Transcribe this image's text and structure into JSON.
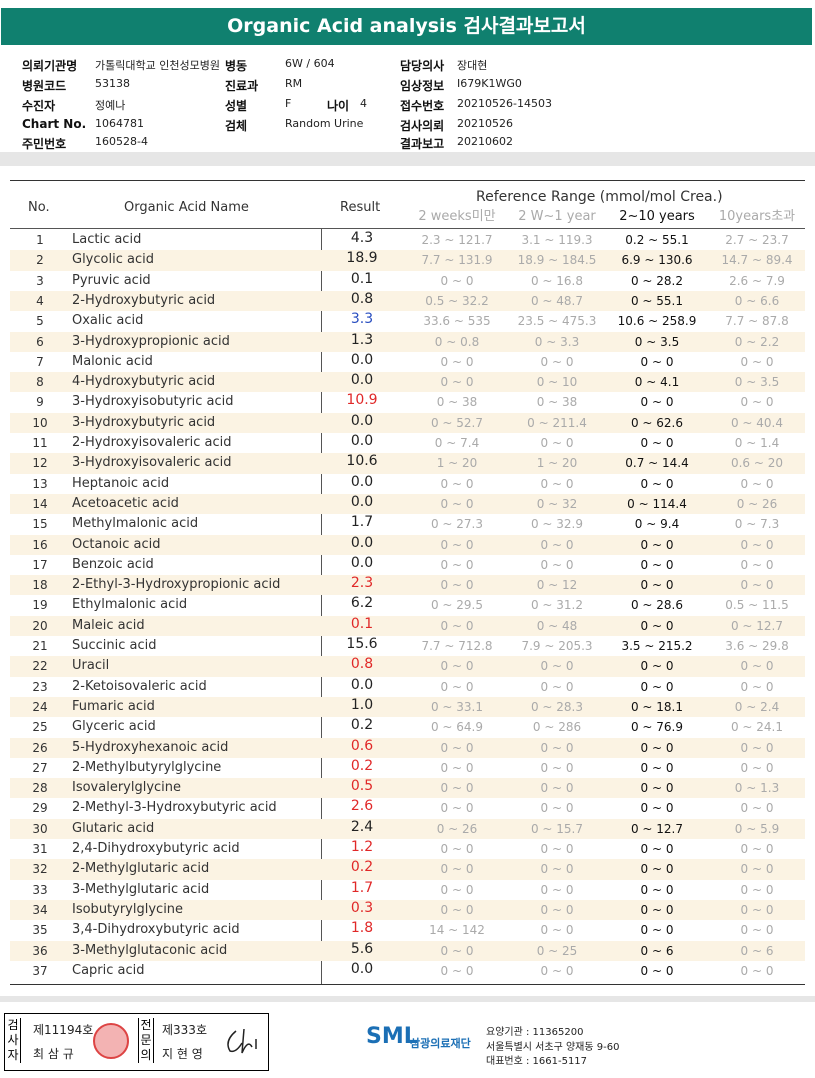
{
  "header": {
    "title": "Organic Acid analysis 검사결과보고서"
  },
  "info": [
    {
      "label": "의뢰기관명",
      "value": "가톨릭대학교 인천성모병원"
    },
    {
      "label": "병동",
      "value": "6W / 604"
    },
    {
      "label": "담당의사",
      "value": "장대현"
    },
    {
      "label": "병원코드",
      "value": "53138"
    },
    {
      "label": "진료과",
      "value": "RM"
    },
    {
      "label": "임상정보",
      "value": "I679K1WG0"
    },
    {
      "label": "수진자",
      "value": "정예나"
    },
    {
      "label": "성별",
      "value": "F"
    },
    {
      "label": "나이",
      "value": "4"
    },
    {
      "label": "접수번호",
      "value": "20210526-14503"
    },
    {
      "label": "Chart No.",
      "value": "1064781"
    },
    {
      "label": "검체",
      "value": "Random Urine"
    },
    {
      "label": "검사의뢰",
      "value": "20210526"
    },
    {
      "label": "주민번호",
      "value": "160528-4"
    },
    {
      "label": "결과보고",
      "value": "20210602"
    }
  ],
  "table": {
    "headers": {
      "no": "No.",
      "name": "Organic Acid Name",
      "result": "Result",
      "reference": "Reference Range (mmol/mol Crea.)",
      "ranges": [
        "2 weeks미만",
        "2 W~1 year",
        "2~10 years",
        "10years초과"
      ]
    },
    "rows": [
      {
        "no": "1",
        "name": "Lactic acid",
        "result": "4.3",
        "color": "#222",
        "ranges": [
          "2.3 ~ 121.7",
          "3.1 ~ 119.3",
          "0.2 ~ 55.1",
          "2.7 ~ 23.7"
        ]
      },
      {
        "no": "2",
        "name": "Glycolic acid",
        "result": "18.9",
        "color": "#222",
        "ranges": [
          "7.7 ~ 131.9",
          "18.9 ~ 184.5",
          "6.9 ~ 130.6",
          "14.7 ~ 89.4"
        ]
      },
      {
        "no": "3",
        "name": "Pyruvic acid",
        "result": "0.1",
        "color": "#222",
        "ranges": [
          "0 ~ 0",
          "0 ~ 16.8",
          "0 ~ 28.2",
          "2.6 ~ 7.9"
        ]
      },
      {
        "no": "4",
        "name": "2-Hydroxybutyric acid",
        "result": "0.8",
        "color": "#222",
        "ranges": [
          "0.5 ~ 32.2",
          "0 ~ 48.7",
          "0 ~ 55.1",
          "0 ~ 6.6"
        ]
      },
      {
        "no": "5",
        "name": "Oxalic acid",
        "result": "3.3",
        "color": "#2a4fc0",
        "ranges": [
          "33.6 ~ 535",
          "23.5 ~ 475.3",
          "10.6 ~ 258.9",
          "7.7 ~ 87.8"
        ]
      },
      {
        "no": "6",
        "name": "3-Hydroxypropionic acid",
        "result": "1.3",
        "color": "#222",
        "ranges": [
          "0 ~ 0.8",
          "0 ~ 3.3",
          "0 ~ 3.5",
          "0 ~ 2.2"
        ]
      },
      {
        "no": "7",
        "name": "Malonic acid",
        "result": "0.0",
        "color": "#222",
        "ranges": [
          "0 ~ 0",
          "0 ~ 0",
          "0 ~ 0",
          "0 ~ 0"
        ]
      },
      {
        "no": "8",
        "name": "4-Hydroxybutyric acid",
        "result": "0.0",
        "color": "#222",
        "ranges": [
          "0 ~ 0",
          "0 ~ 10",
          "0 ~ 4.1",
          "0 ~ 3.5"
        ]
      },
      {
        "no": "9",
        "name": "3-Hydroxyisobutyric acid",
        "result": "10.9",
        "color": "#e02828",
        "ranges": [
          "0 ~ 38",
          "0 ~ 38",
          "0 ~ 0",
          "0 ~ 0"
        ]
      },
      {
        "no": "10",
        "name": "3-Hydroxybutyric acid",
        "result": "0.0",
        "color": "#222",
        "ranges": [
          "0 ~ 52.7",
          "0 ~ 211.4",
          "0 ~ 62.6",
          "0 ~ 40.4"
        ]
      },
      {
        "no": "11",
        "name": "2-Hydroxyisovaleric acid",
        "result": "0.0",
        "color": "#222",
        "ranges": [
          "0 ~ 7.4",
          "0 ~ 0",
          "0 ~ 0",
          "0 ~ 1.4"
        ]
      },
      {
        "no": "12",
        "name": "3-Hydroxyisovaleric acid",
        "result": "10.6",
        "color": "#222",
        "ranges": [
          "1 ~ 20",
          "1 ~ 20",
          "0.7 ~ 14.4",
          "0.6 ~ 20"
        ]
      },
      {
        "no": "13",
        "name": "Heptanoic acid",
        "result": "0.0",
        "color": "#222",
        "ranges": [
          "0 ~ 0",
          "0 ~ 0",
          "0 ~ 0",
          "0 ~ 0"
        ]
      },
      {
        "no": "14",
        "name": "Acetoacetic acid",
        "result": "0.0",
        "color": "#222",
        "ranges": [
          "0 ~ 0",
          "0 ~ 32",
          "0 ~ 114.4",
          "0 ~ 26"
        ]
      },
      {
        "no": "15",
        "name": "Methylmalonic acid",
        "result": "1.7",
        "color": "#222",
        "ranges": [
          "0 ~ 27.3",
          "0 ~ 32.9",
          "0 ~ 9.4",
          "0 ~ 7.3"
        ]
      },
      {
        "no": "16",
        "name": "Octanoic acid",
        "result": "0.0",
        "color": "#222",
        "ranges": [
          "0 ~ 0",
          "0 ~ 0",
          "0 ~ 0",
          "0 ~ 0"
        ]
      },
      {
        "no": "17",
        "name": "Benzoic acid",
        "result": "0.0",
        "color": "#222",
        "ranges": [
          "0 ~ 0",
          "0 ~ 0",
          "0 ~ 0",
          "0 ~ 0"
        ]
      },
      {
        "no": "18",
        "name": "2-Ethyl-3-Hydroxypropionic acid",
        "result": "2.3",
        "color": "#e02828",
        "ranges": [
          "0 ~ 0",
          "0 ~ 12",
          "0 ~ 0",
          "0 ~ 0"
        ]
      },
      {
        "no": "19",
        "name": "Ethylmalonic acid",
        "result": "6.2",
        "color": "#222",
        "ranges": [
          "0 ~ 29.5",
          "0 ~ 31.2",
          "0 ~ 28.6",
          "0.5 ~ 11.5"
        ]
      },
      {
        "no": "20",
        "name": "Maleic acid",
        "result": "0.1",
        "color": "#e02828",
        "ranges": [
          "0 ~ 0",
          "0 ~ 48",
          "0 ~ 0",
          "0 ~ 12.7"
        ]
      },
      {
        "no": "21",
        "name": "Succinic acid",
        "result": "15.6",
        "color": "#222",
        "ranges": [
          "7.7 ~ 712.8",
          "7.9 ~ 205.3",
          "3.5 ~ 215.2",
          "3.6 ~ 29.8"
        ]
      },
      {
        "no": "22",
        "name": "Uracil",
        "result": "0.8",
        "color": "#e02828",
        "ranges": [
          "0 ~ 0",
          "0 ~ 0",
          "0 ~ 0",
          "0 ~ 0"
        ]
      },
      {
        "no": "23",
        "name": "2-Ketoisovaleric acid",
        "result": "0.0",
        "color": "#222",
        "ranges": [
          "0 ~ 0",
          "0 ~ 0",
          "0 ~ 0",
          "0 ~ 0"
        ]
      },
      {
        "no": "24",
        "name": "Fumaric acid",
        "result": "1.0",
        "color": "#222",
        "ranges": [
          "0 ~ 33.1",
          "0 ~ 28.3",
          "0 ~ 18.1",
          "0 ~ 2.4"
        ]
      },
      {
        "no": "25",
        "name": "Glyceric acid",
        "result": "0.2",
        "color": "#222",
        "ranges": [
          "0 ~ 64.9",
          "0 ~ 286",
          "0 ~ 76.9",
          "0 ~ 24.1"
        ]
      },
      {
        "no": "26",
        "name": "5-Hydroxyhexanoic acid",
        "result": "0.6",
        "color": "#e02828",
        "ranges": [
          "0 ~ 0",
          "0 ~ 0",
          "0 ~ 0",
          "0 ~ 0"
        ]
      },
      {
        "no": "27",
        "name": "2-Methylbutyrylglycine",
        "result": "0.2",
        "color": "#e02828",
        "ranges": [
          "0 ~ 0",
          "0 ~ 0",
          "0 ~ 0",
          "0 ~ 0"
        ]
      },
      {
        "no": "28",
        "name": "Isovalerylglycine",
        "result": "0.5",
        "color": "#e02828",
        "ranges": [
          "0 ~ 0",
          "0 ~ 0",
          "0 ~ 0",
          "0 ~ 1.3"
        ]
      },
      {
        "no": "29",
        "name": "2-Methyl-3-Hydroxybutyric acid",
        "result": "2.6",
        "color": "#e02828",
        "ranges": [
          "0 ~ 0",
          "0 ~ 0",
          "0 ~ 0",
          "0 ~ 0"
        ]
      },
      {
        "no": "30",
        "name": "Glutaric acid",
        "result": "2.4",
        "color": "#222",
        "ranges": [
          "0 ~ 26",
          "0 ~ 15.7",
          "0 ~ 12.7",
          "0 ~ 5.9"
        ]
      },
      {
        "no": "31",
        "name": "2,4-Dihydroxybutyric acid",
        "result": "1.2",
        "color": "#e02828",
        "ranges": [
          "0 ~ 0",
          "0 ~ 0",
          "0 ~ 0",
          "0 ~ 0"
        ]
      },
      {
        "no": "32",
        "name": "2-Methylglutaric acid",
        "result": "0.2",
        "color": "#e02828",
        "ranges": [
          "0 ~ 0",
          "0 ~ 0",
          "0 ~ 0",
          "0 ~ 0"
        ]
      },
      {
        "no": "33",
        "name": "3-Methylglutaric acid",
        "result": "1.7",
        "color": "#e02828",
        "ranges": [
          "0 ~ 0",
          "0 ~ 0",
          "0 ~ 0",
          "0 ~ 0"
        ]
      },
      {
        "no": "34",
        "name": "Isobutyrylglycine",
        "result": "0.3",
        "color": "#e02828",
        "ranges": [
          "0 ~ 0",
          "0 ~ 0",
          "0 ~ 0",
          "0 ~ 0"
        ]
      },
      {
        "no": "35",
        "name": "3,4-Dihydroxybutyric acid",
        "result": "1.8",
        "color": "#e02828",
        "ranges": [
          "14 ~ 142",
          "0 ~ 0",
          "0 ~ 0",
          "0 ~ 0"
        ]
      },
      {
        "no": "36",
        "name": "3-Methylglutaconic acid",
        "result": "5.6",
        "color": "#222",
        "ranges": [
          "0 ~ 0",
          "0 ~ 25",
          "0 ~ 6",
          "0 ~ 6"
        ]
      },
      {
        "no": "37",
        "name": "Capric acid",
        "result": "0.0",
        "color": "#222",
        "ranges": [
          "0 ~ 0",
          "0 ~ 0",
          "0 ~ 0",
          "0 ~ 0"
        ]
      }
    ]
  },
  "footer": {
    "examiner": {
      "label": "검사자",
      "license": "제11194호",
      "name": "최 삼 규"
    },
    "specialist": {
      "label": "전문의",
      "license": "제333호",
      "name": "지 현 영"
    },
    "logo": "SML",
    "org": "삼광의료재단",
    "code": "요양기관 : 11365200",
    "address": "서울특별시 서초구 양재동 9-60",
    "phone": "대표번호 : 1661-5117"
  }
}
